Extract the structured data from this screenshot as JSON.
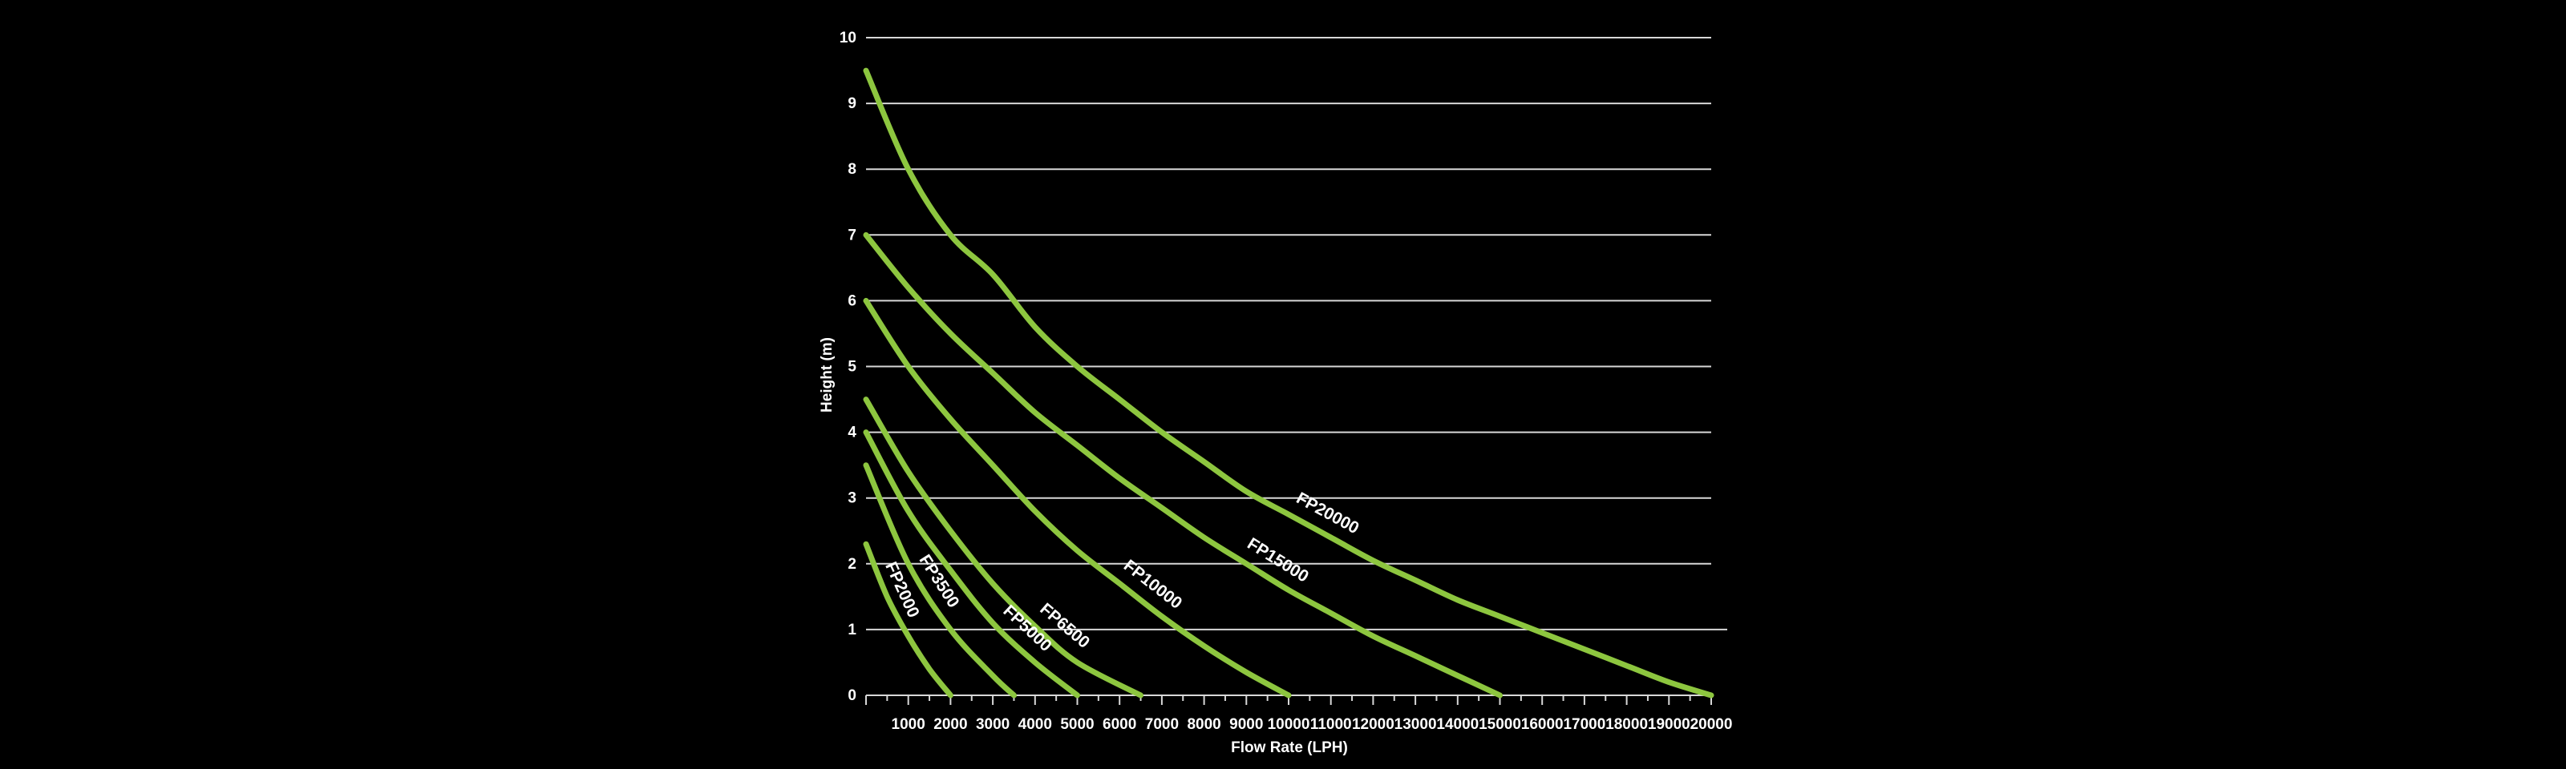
{
  "chart_data": {
    "type": "line",
    "title": "",
    "xlabel": "Flow Rate (LPH)",
    "ylabel": "Height (m)",
    "xlim": [
      0,
      20000
    ],
    "ylim": [
      0,
      10
    ],
    "xticks": [
      "1000",
      "2000",
      "3000",
      "4000",
      "5000",
      "6000",
      "7000",
      "8000",
      "9000",
      "10000",
      "11000",
      "12000",
      "13000",
      "14000",
      "15000",
      "16000",
      "17000",
      "18000",
      "19000",
      "20000"
    ],
    "yticks": [
      "0",
      "1",
      "2",
      "3",
      "4",
      "5",
      "6",
      "7",
      "8",
      "9",
      "10"
    ],
    "grid": "horizontal",
    "legend": "none",
    "line_color": "#8dc63f",
    "series": [
      {
        "name": "FP2000",
        "x": [
          0,
          500,
          1000,
          1500,
          2000
        ],
        "y": [
          2.3,
          1.5,
          0.9,
          0.4,
          0
        ]
      },
      {
        "name": "FP3500",
        "x": [
          0,
          1000,
          2000,
          3000,
          3500
        ],
        "y": [
          3.5,
          2.0,
          1.0,
          0.3,
          0
        ]
      },
      {
        "name": "FP5000",
        "x": [
          0,
          1000,
          2000,
          3000,
          4000,
          5000
        ],
        "y": [
          4.0,
          2.8,
          1.9,
          1.1,
          0.5,
          0
        ]
      },
      {
        "name": "FP6500",
        "x": [
          0,
          1000,
          2000,
          3000,
          4000,
          5000,
          6500
        ],
        "y": [
          4.5,
          3.4,
          2.5,
          1.7,
          1.05,
          0.5,
          0
        ]
      },
      {
        "name": "FP10000",
        "x": [
          0,
          1000,
          2000,
          3000,
          4000,
          5000,
          6000,
          7000,
          8000,
          9000,
          10000
        ],
        "y": [
          6.0,
          5.0,
          4.2,
          3.5,
          2.8,
          2.2,
          1.7,
          1.2,
          0.75,
          0.35,
          0
        ]
      },
      {
        "name": "FP15000",
        "x": [
          0,
          1000,
          2000,
          3000,
          4000,
          5000,
          6000,
          7000,
          8000,
          9000,
          10000,
          11000,
          12000,
          13000,
          14000,
          15000
        ],
        "y": [
          7.0,
          6.2,
          5.5,
          4.9,
          4.3,
          3.8,
          3.3,
          2.85,
          2.4,
          2.0,
          1.6,
          1.25,
          0.9,
          0.6,
          0.3,
          0
        ]
      },
      {
        "name": "FP20000",
        "x": [
          0,
          1000,
          2000,
          3000,
          4000,
          5000,
          6000,
          7000,
          8000,
          9000,
          10000,
          11000,
          12000,
          13000,
          14000,
          15000,
          16000,
          17000,
          18000,
          19000,
          20000
        ],
        "y": [
          9.5,
          8.0,
          7.0,
          6.4,
          5.6,
          5.0,
          4.5,
          4.0,
          3.55,
          3.1,
          2.75,
          2.4,
          2.05,
          1.75,
          1.45,
          1.2,
          0.95,
          0.7,
          0.45,
          0.2,
          0
        ]
      }
    ]
  }
}
